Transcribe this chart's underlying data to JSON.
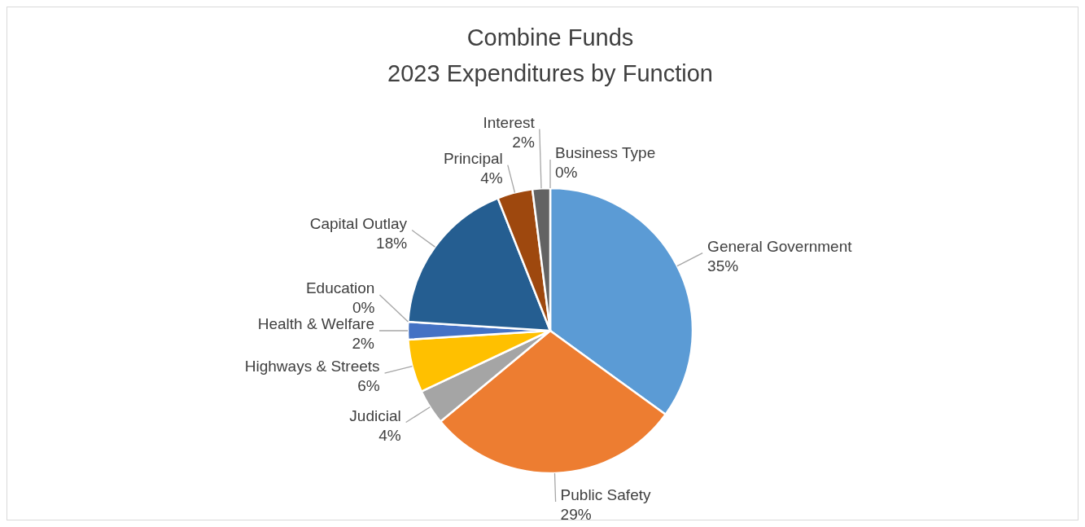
{
  "chart_data": {
    "type": "pie",
    "title": "Combine Funds\n2023 Expenditures by Function",
    "categories": [
      "General Government",
      "Public Safety",
      "Judicial",
      "Highways & Streets",
      "Health & Welfare",
      "Education",
      "Capital Outlay",
      "Principal",
      "Interest",
      "Business Type"
    ],
    "values": [
      35,
      29,
      4,
      6,
      2,
      0,
      18,
      4,
      2,
      0
    ],
    "value_labels": [
      "35%",
      "29%",
      "4%",
      "6%",
      "2%",
      "0%",
      "18%",
      "4%",
      "2%",
      "0%"
    ],
    "colors": [
      "#5b9bd5",
      "#ed7d31",
      "#a5a5a5",
      "#ffc000",
      "#4472c4",
      "#70ad47",
      "#255e91",
      "#9e480e",
      "#636363",
      "#997300"
    ]
  }
}
